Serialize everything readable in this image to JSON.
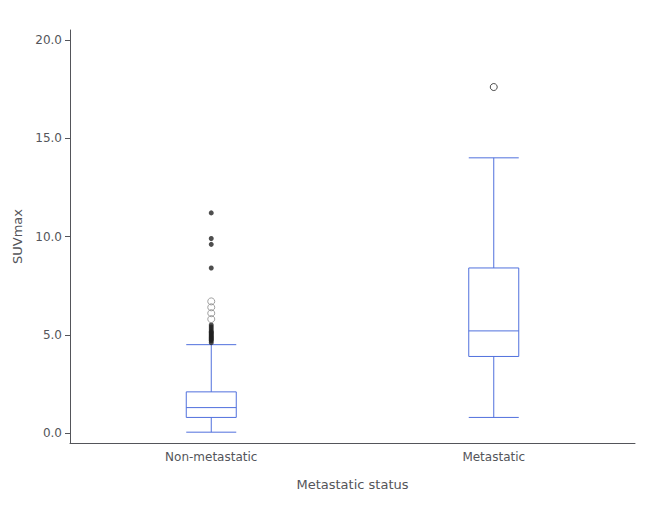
{
  "chart_data": {
    "type": "box",
    "categories": [
      "Non-metastatic",
      "Metastatic"
    ],
    "xlabel": "Metastatic status",
    "ylabel": "SUVmax",
    "boxes": [
      {
        "whisker_low": 0.05,
        "q1": 0.8,
        "median": 1.3,
        "q3": 2.1,
        "whisker_high": 4.5
      },
      {
        "whisker_low": 0.8,
        "q1": 3.9,
        "median": 5.2,
        "q3": 8.4,
        "whisker_high": 14.0
      }
    ],
    "outliers": [
      {
        "category": "Non-metastatic",
        "marker": "filled",
        "color": "#222222",
        "values": [
          4.6,
          4.7,
          4.75,
          4.8,
          4.85,
          4.9,
          4.95,
          5.0,
          5.05,
          5.1,
          5.15,
          5.2,
          5.3,
          5.4,
          5.5
        ]
      },
      {
        "category": "Non-metastatic",
        "marker": "open",
        "color": "#888888",
        "values": [
          5.8,
          6.1,
          6.4,
          6.7
        ]
      },
      {
        "category": "Non-metastatic",
        "marker": "filled",
        "color": "#222222",
        "values": [
          8.4,
          9.6,
          9.9,
          11.2
        ]
      },
      {
        "category": "Metastatic",
        "marker": "open",
        "color": "#222222",
        "values": [
          17.6
        ]
      }
    ],
    "ylim": [
      -0.5,
      20.5
    ],
    "yticks": [
      {
        "value": 0,
        "label": "0.0"
      },
      {
        "value": 5,
        "label": "5.0"
      },
      {
        "value": 10,
        "label": "10.0"
      },
      {
        "value": 15,
        "label": "15.0"
      },
      {
        "value": 20,
        "label": "20.0"
      }
    ],
    "grid": false
  }
}
